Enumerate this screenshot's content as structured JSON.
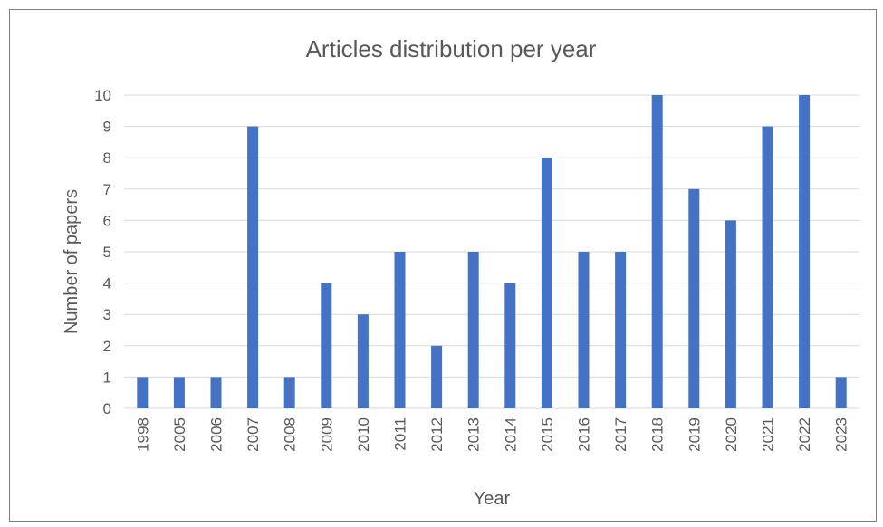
{
  "chart_data": {
    "type": "bar",
    "title": "Articles distribution per year",
    "xlabel": "Year",
    "ylabel": "Number of papers",
    "categories": [
      "1998",
      "2005",
      "2006",
      "2007",
      "2008",
      "2009",
      "2010",
      "2011",
      "2012",
      "2013",
      "2014",
      "2015",
      "2016",
      "2017",
      "2018",
      "2019",
      "2020",
      "2021",
      "2022",
      "2023"
    ],
    "values": [
      1,
      1,
      1,
      9,
      1,
      4,
      3,
      5,
      2,
      5,
      4,
      8,
      5,
      5,
      10,
      7,
      6,
      9,
      10,
      1
    ],
    "ylim": [
      0,
      10
    ],
    "yticks": [
      "0",
      "1",
      "2",
      "3",
      "4",
      "5",
      "6",
      "7",
      "8",
      "9",
      "10"
    ],
    "grid": true,
    "legend": "none",
    "bar_color": "#4472c4"
  }
}
